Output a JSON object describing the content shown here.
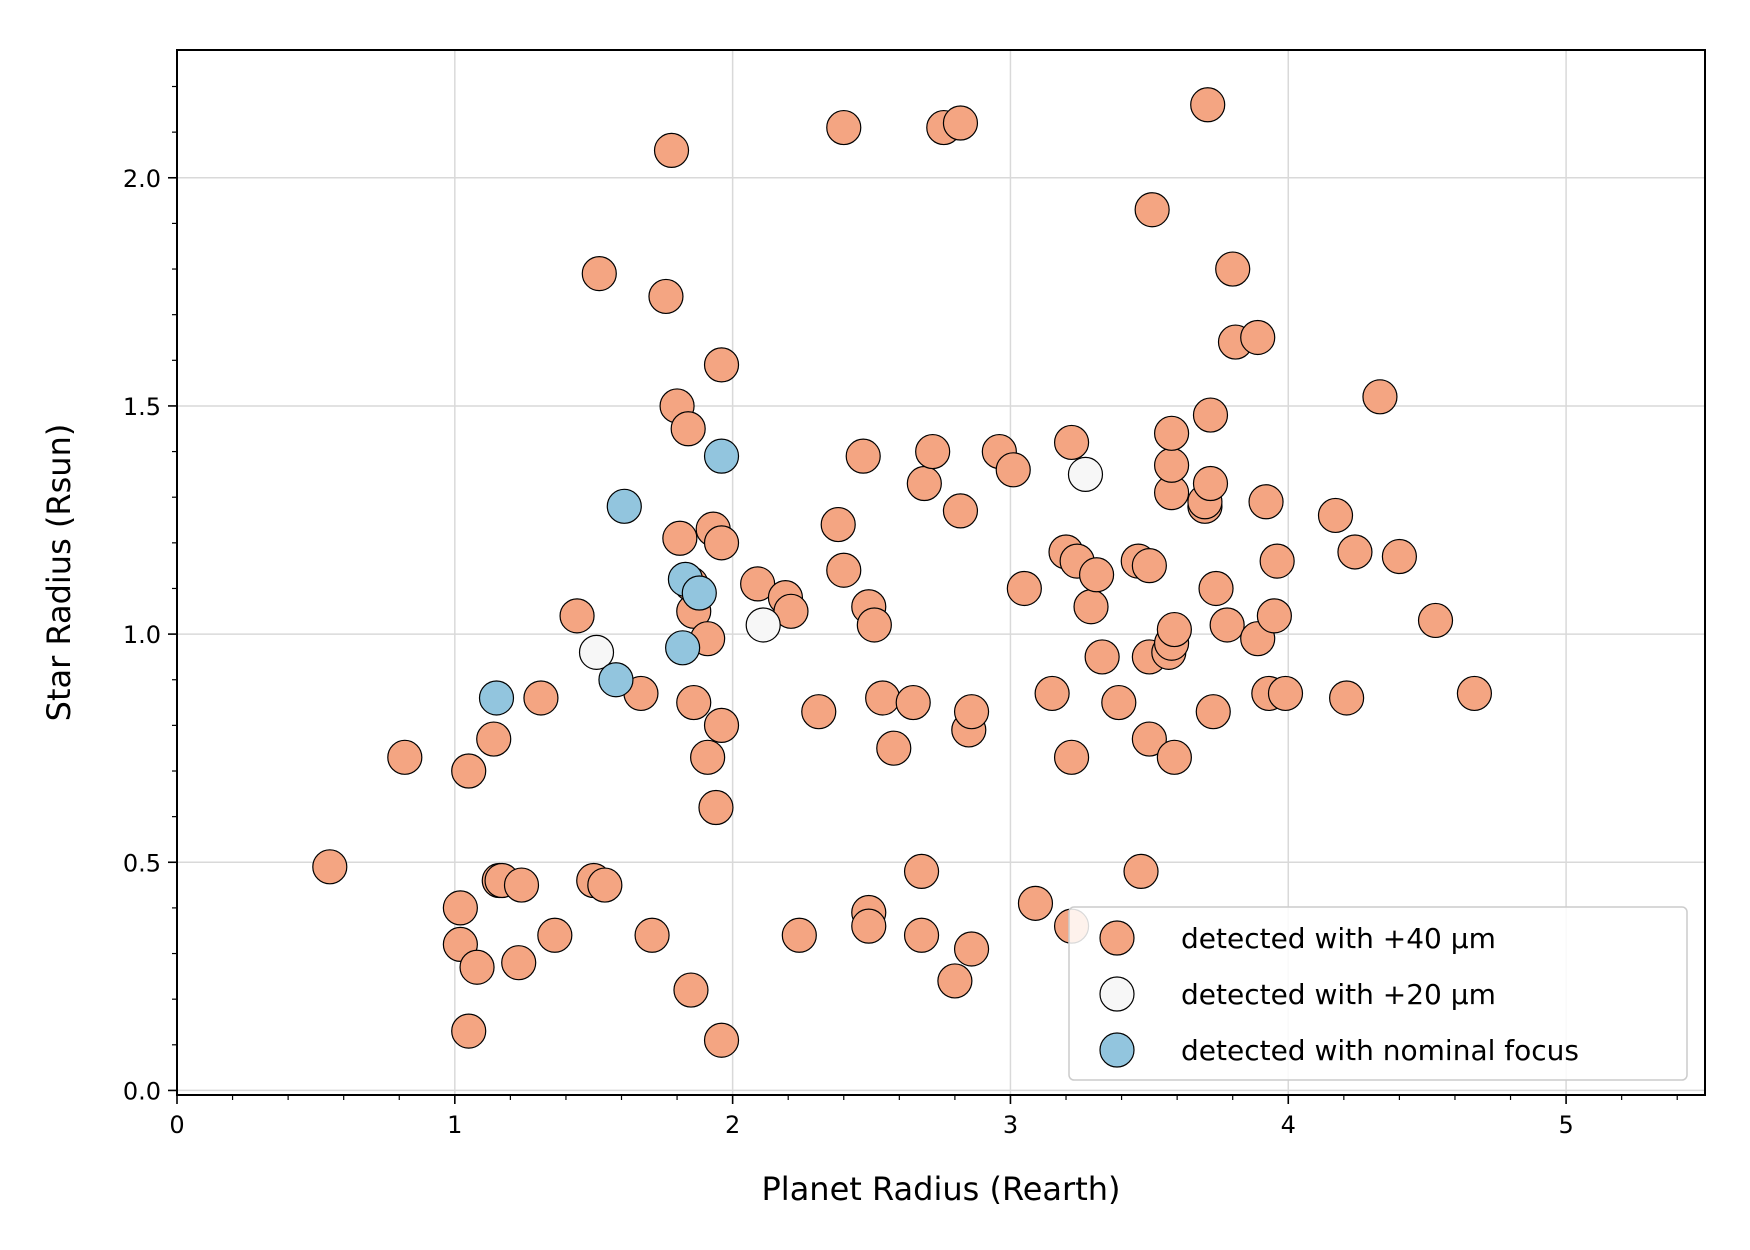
{
  "chart_data": {
    "type": "scatter",
    "xlabel": "Planet Radius (Rearth)",
    "ylabel": "Star Radius (Rsun)",
    "xlim": [
      0,
      5.5
    ],
    "ylim": [
      -0.01,
      2.28
    ],
    "xticks": [
      0,
      1,
      2,
      3,
      4,
      5
    ],
    "xtick_labels": [
      "0",
      "1",
      "2",
      "3",
      "4",
      "5"
    ],
    "yticks": [
      0.0,
      0.5,
      1.0,
      1.5,
      2.0
    ],
    "ytick_labels": [
      "0.0",
      "0.5",
      "1.0",
      "1.5",
      "2.0"
    ],
    "grid": true,
    "legend_position": "bottom-right",
    "series": [
      {
        "name": "detected with +40 μm",
        "color": "#f4a582",
        "x": [
          0.55,
          0.82,
          1.02,
          1.02,
          1.05,
          1.05,
          1.08,
          1.14,
          1.16,
          1.17,
          1.24,
          1.23,
          1.31,
          1.36,
          1.44,
          1.5,
          1.54,
          1.52,
          1.67,
          1.71,
          1.76,
          1.78,
          1.8,
          1.81,
          1.84,
          1.85,
          1.86,
          1.86,
          1.85,
          1.91,
          1.91,
          1.93,
          1.94,
          1.96,
          1.96,
          1.96,
          1.96,
          2.09,
          2.19,
          2.21,
          2.24,
          2.31,
          2.38,
          2.4,
          2.4,
          2.47,
          2.49,
          2.49,
          2.49,
          2.51,
          2.54,
          2.58,
          2.65,
          2.68,
          2.68,
          2.69,
          2.72,
          2.76,
          2.8,
          2.82,
          2.82,
          2.85,
          2.86,
          2.86,
          2.96,
          3.01,
          3.05,
          3.09,
          3.15,
          3.2,
          3.22,
          3.22,
          3.22,
          3.24,
          3.29,
          3.31,
          3.33,
          3.39,
          3.46,
          3.47,
          3.5,
          3.5,
          3.5,
          3.51,
          3.57,
          3.58,
          3.58,
          3.58,
          3.58,
          3.59,
          3.59,
          3.7,
          3.7,
          3.71,
          3.72,
          3.72,
          3.73,
          3.74,
          3.78,
          3.8,
          3.81,
          3.89,
          3.89,
          3.92,
          3.93,
          3.95,
          3.96,
          3.99,
          4.17,
          4.21,
          4.24,
          4.33,
          4.4,
          4.53,
          4.67
        ],
        "y": [
          0.49,
          0.73,
          0.4,
          0.32,
          0.13,
          0.7,
          0.27,
          0.77,
          0.46,
          0.46,
          0.45,
          0.28,
          0.86,
          0.34,
          1.04,
          0.46,
          0.45,
          1.79,
          0.87,
          0.34,
          1.74,
          2.06,
          1.5,
          1.21,
          1.45,
          0.22,
          1.05,
          0.85,
          1.11,
          0.73,
          0.99,
          1.23,
          0.62,
          1.2,
          1.59,
          0.8,
          0.11,
          1.11,
          1.08,
          1.05,
          0.34,
          0.83,
          1.24,
          2.11,
          1.14,
          1.39,
          1.06,
          0.39,
          0.36,
          1.02,
          0.86,
          0.75,
          0.85,
          0.48,
          0.34,
          1.33,
          1.4,
          2.11,
          0.24,
          2.12,
          1.27,
          0.79,
          0.83,
          0.31,
          1.4,
          1.36,
          1.1,
          0.41,
          0.87,
          1.18,
          1.42,
          0.73,
          0.36,
          1.16,
          1.06,
          1.13,
          0.95,
          0.85,
          1.16,
          0.48,
          1.15,
          0.77,
          0.95,
          1.93,
          0.96,
          0.98,
          1.31,
          1.37,
          1.44,
          1.01,
          0.73,
          1.28,
          1.29,
          2.16,
          1.48,
          1.33,
          0.83,
          1.1,
          1.02,
          1.8,
          1.64,
          1.65,
          0.99,
          1.29,
          0.87,
          1.04,
          1.16,
          0.87,
          1.26,
          0.86,
          1.18,
          1.52,
          1.17,
          1.03,
          0.87
        ]
      },
      {
        "name": "detected with +20 μm",
        "color": "#f7f7f7",
        "x": [
          1.51,
          2.11,
          3.27
        ],
        "y": [
          0.96,
          1.02,
          1.35
        ]
      },
      {
        "name": "detected with nominal focus",
        "color": "#92c5de",
        "x": [
          1.15,
          1.58,
          1.61,
          1.82,
          1.83,
          1.88,
          1.96
        ],
        "y": [
          0.86,
          0.9,
          1.28,
          0.97,
          1.12,
          1.09,
          1.39
        ]
      }
    ]
  }
}
